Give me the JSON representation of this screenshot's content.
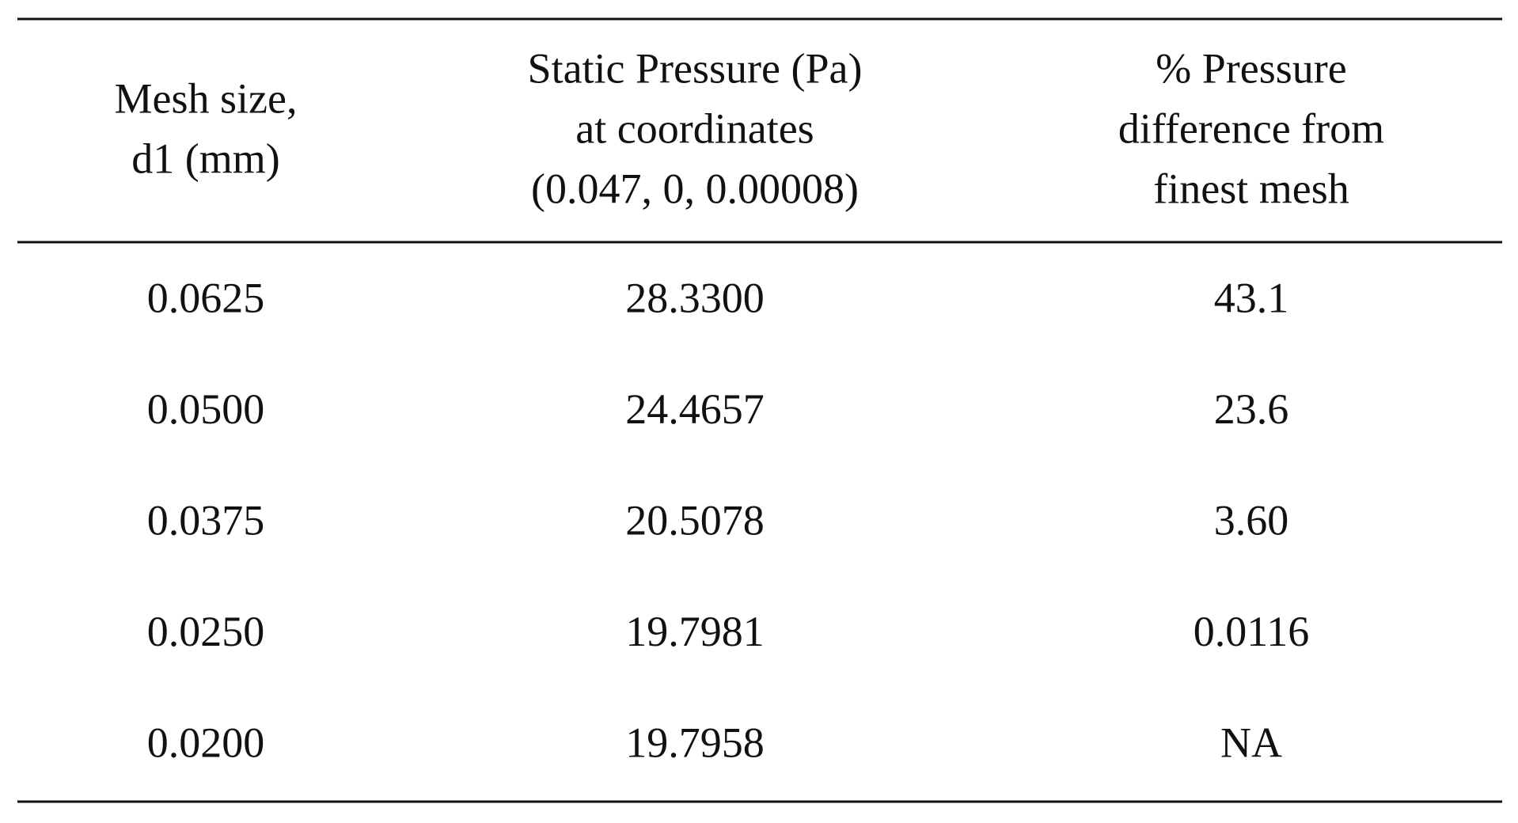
{
  "table": {
    "header": [
      [
        "Mesh size,",
        "d1 (mm)"
      ],
      [
        "Static Pressure (Pa)",
        "at coordinates",
        "(0.047, 0, 0.00008)"
      ],
      [
        "% Pressure",
        "difference from",
        "finest mesh"
      ]
    ],
    "rows": [
      [
        "0.0625",
        "28.3300",
        "43.1"
      ],
      [
        "0.0500",
        "24.4657",
        "23.6"
      ],
      [
        "0.0375",
        "20.5078",
        "3.60"
      ],
      [
        "0.0250",
        "19.7981",
        "0.0116"
      ],
      [
        "0.0200",
        "19.7958",
        "NA"
      ]
    ]
  }
}
